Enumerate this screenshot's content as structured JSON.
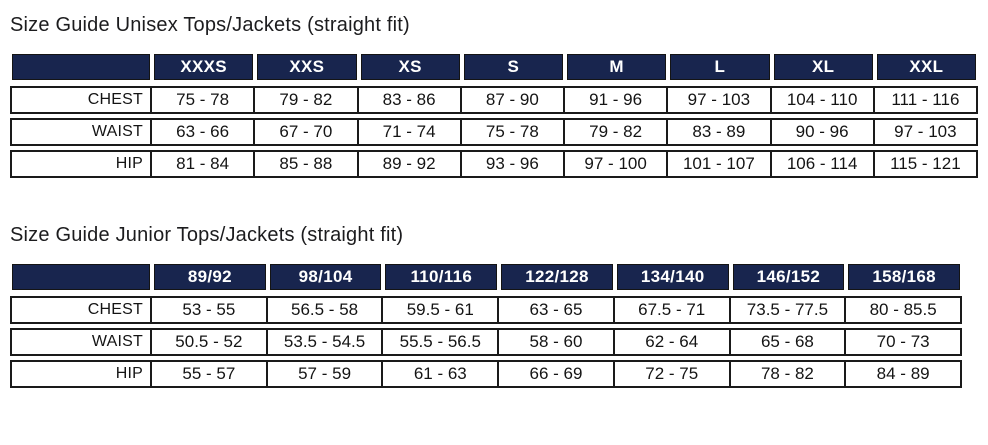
{
  "colors": {
    "header_background": "#18254e",
    "header_text": "#ffffff",
    "border": "#1a1a1a",
    "body_text": "#141414",
    "page_background": "#ffffff"
  },
  "tables": [
    {
      "title": "Size Guide Unisex Tops/Jackets (straight fit)",
      "headers": [
        "XXXS",
        "XXS",
        "XS",
        "S",
        "M",
        "L",
        "XL",
        "XXL"
      ],
      "rows": [
        {
          "label": "CHEST",
          "values": [
            "75 - 78",
            "79 - 82",
            "83 - 86",
            "87 - 90",
            "91 - 96",
            "97 - 103",
            "104 - 110",
            "111 - 116"
          ]
        },
        {
          "label": "WAIST",
          "values": [
            "63 - 66",
            "67 - 70",
            "71 - 74",
            "75 - 78",
            "79 - 82",
            "83 - 89",
            "90 - 96",
            "97 - 103"
          ]
        },
        {
          "label": "HIP",
          "values": [
            "81 - 84",
            "85 - 88",
            "89 - 92",
            "93 - 96",
            "97 - 100",
            "101 - 107",
            "106 - 114",
            "115 - 121"
          ]
        }
      ]
    },
    {
      "title": "Size Guide Junior Tops/Jackets (straight fit)",
      "headers": [
        "89/92",
        "98/104",
        "110/116",
        "122/128",
        "134/140",
        "146/152",
        "158/168"
      ],
      "rows": [
        {
          "label": "CHEST",
          "values": [
            "53 - 55",
            "56.5 - 58",
            "59.5 - 61",
            "63 - 65",
            "67.5 - 71",
            "73.5 - 77.5",
            "80 - 85.5"
          ]
        },
        {
          "label": "WAIST",
          "values": [
            "50.5 - 52",
            "53.5 - 54.5",
            "55.5 - 56.5",
            "58 - 60",
            "62 - 64",
            "65 - 68",
            "70 - 73"
          ]
        },
        {
          "label": "HIP",
          "values": [
            "55 - 57",
            "57 - 59",
            "61 - 63",
            "66 - 69",
            "72 - 75",
            "78 - 82",
            "84 - 89"
          ]
        }
      ]
    }
  ]
}
